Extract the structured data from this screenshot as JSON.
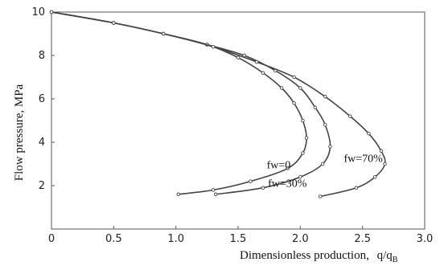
{
  "chart_data": {
    "type": "line",
    "xlabel": "Dimensionless production,",
    "xlabel_suffix": "q/q",
    "xlabel_subscript": "B",
    "ylabel": "Flow pressure, MPa",
    "xlim": [
      0,
      3.0
    ],
    "ylim": [
      0,
      10
    ],
    "x_ticks": [
      "0",
      "0.5",
      "1.0",
      "1.5",
      "2.0",
      "2.5",
      "3.0"
    ],
    "y_ticks": [
      "2",
      "4",
      "6",
      "8",
      "10"
    ],
    "grid": false,
    "series": [
      {
        "name": "fw=0",
        "points": [
          [
            0,
            10
          ],
          [
            0.5,
            9.5
          ],
          [
            0.9,
            9.0
          ],
          [
            1.25,
            8.5
          ],
          [
            1.5,
            7.9
          ],
          [
            1.7,
            7.2
          ],
          [
            1.85,
            6.5
          ],
          [
            1.95,
            5.8
          ],
          [
            2.02,
            5.0
          ],
          [
            2.05,
            4.2
          ],
          [
            2.02,
            3.5
          ],
          [
            1.9,
            2.8
          ],
          [
            1.6,
            2.2
          ],
          [
            1.3,
            1.8
          ],
          [
            1.02,
            1.6
          ]
        ]
      },
      {
        "name": "fw=30%",
        "points": [
          [
            0,
            10
          ],
          [
            0.5,
            9.5
          ],
          [
            0.9,
            9.0
          ],
          [
            1.25,
            8.5
          ],
          [
            1.55,
            8.0
          ],
          [
            1.8,
            7.3
          ],
          [
            2.0,
            6.5
          ],
          [
            2.12,
            5.6
          ],
          [
            2.2,
            4.8
          ],
          [
            2.24,
            3.8
          ],
          [
            2.18,
            3.0
          ],
          [
            2.0,
            2.4
          ],
          [
            1.7,
            1.9
          ],
          [
            1.32,
            1.6
          ]
        ]
      },
      {
        "name": "fw=70%",
        "points": [
          [
            0,
            10
          ],
          [
            0.5,
            9.5
          ],
          [
            0.9,
            9.0
          ],
          [
            1.3,
            8.4
          ],
          [
            1.65,
            7.7
          ],
          [
            1.95,
            7.0
          ],
          [
            2.2,
            6.1
          ],
          [
            2.4,
            5.2
          ],
          [
            2.55,
            4.4
          ],
          [
            2.65,
            3.6
          ],
          [
            2.68,
            3.0
          ],
          [
            2.6,
            2.4
          ],
          [
            2.45,
            1.9
          ],
          [
            2.16,
            1.5
          ]
        ]
      }
    ],
    "annotations": [
      {
        "text": "fw=0",
        "x": 1.73,
        "y": 2.8
      },
      {
        "text": "fw=30%",
        "x": 1.74,
        "y": 1.95
      },
      {
        "text": "fw=70%",
        "x": 2.35,
        "y": 3.1
      }
    ]
  }
}
